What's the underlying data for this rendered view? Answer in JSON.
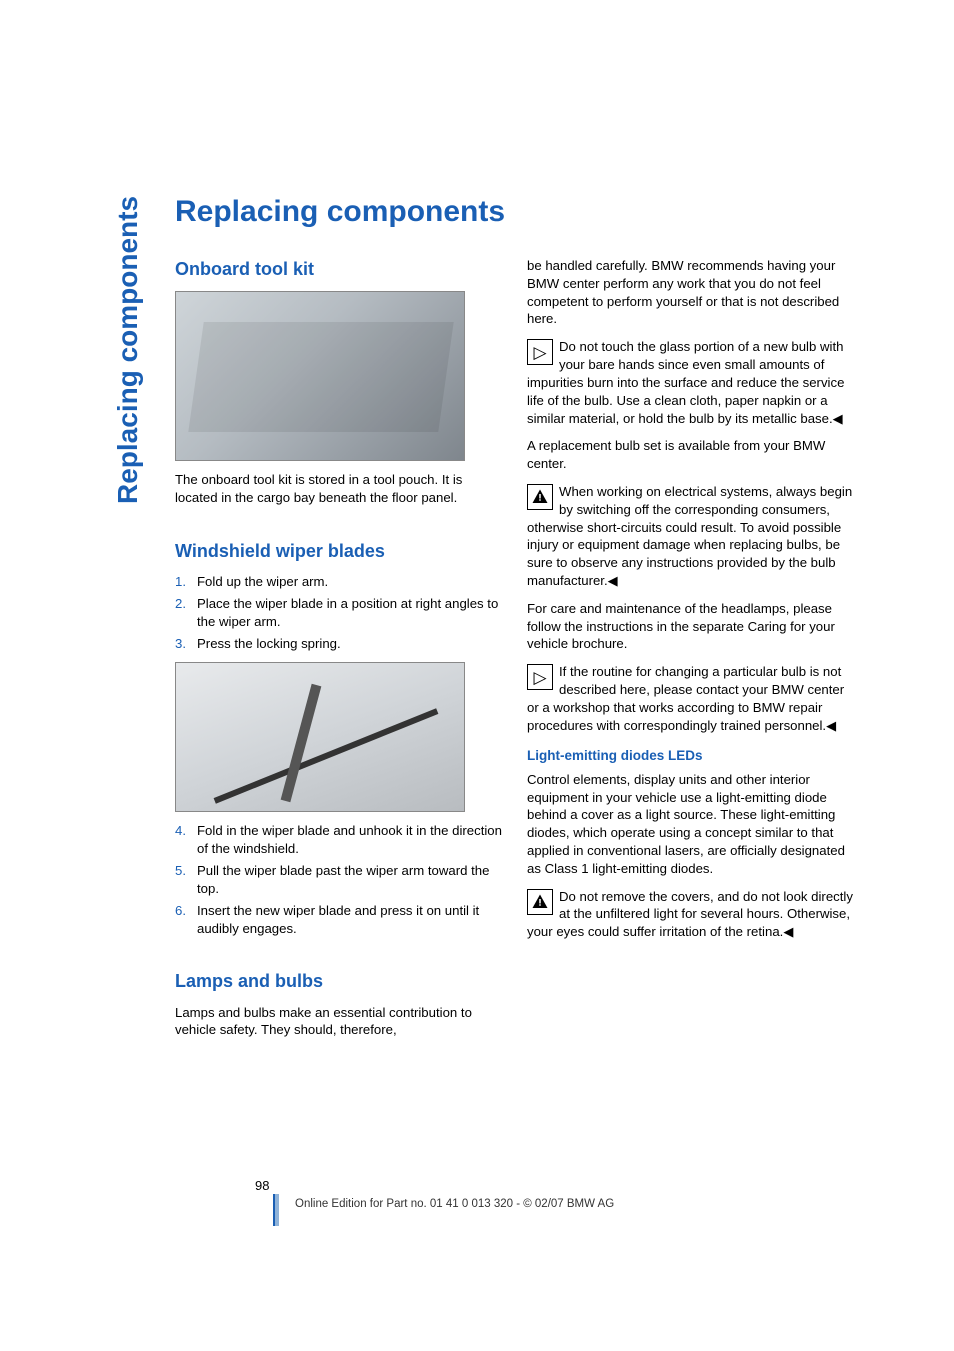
{
  "sideTab": "Replacing components",
  "chapterTitle": "Replacing components",
  "left": {
    "onboard": {
      "heading": "Onboard tool kit",
      "body": "The onboard tool kit is stored in a tool pouch. It is located in the cargo bay beneath the floor panel."
    },
    "wipers": {
      "heading": "Windshield wiper blades",
      "steps_a": [
        "Fold up the wiper arm.",
        "Place the wiper blade in a position at right angles to the wiper arm.",
        "Press the locking spring."
      ],
      "steps_b": [
        "Fold in the wiper blade and unhook it in the direction of the windshield.",
        "Pull the wiper blade past the wiper arm toward the top.",
        "Insert the new wiper blade and press it on until it audibly engages."
      ]
    },
    "lamps": {
      "heading": "Lamps and bulbs",
      "intro": "Lamps and bulbs make an essential contribution to vehicle safety. They should, therefore,"
    }
  },
  "right": {
    "cont": "be handled carefully. BMW recommends having your BMW center perform any work that you do not feel competent to perform yourself or that is not described here.",
    "note1": "Do not touch the glass portion of a new bulb with your bare hands since even small amounts of impurities burn into the surface and reduce the service life of the bulb. Use a clean cloth, paper napkin or a similar material, or hold the bulb by its metallic base.◀",
    "replacement": "A replacement bulb set is available from your BMW center.",
    "warn1": "When working on electrical systems, always begin by switching off the corresponding consumers, otherwise short-circuits could result. To avoid possible injury or equipment damage when replacing bulbs, be sure to observe any instructions provided by the bulb manufacturer.◀",
    "care": "For care and maintenance of the headlamps, please follow the instructions in the separate Caring for your vehicle brochure.",
    "note2": "If the routine for changing a particular bulb is not described here, please contact your BMW center or a workshop that works according to BMW repair procedures with correspondingly trained personnel.◀",
    "leds": {
      "heading": "Light-emitting diodes LEDs",
      "body": "Control elements, display units and other interior equipment in your vehicle use a light-emitting diode behind a cover as a light source. These light-emitting diodes, which operate using a concept similar to that applied in conventional lasers, are officially designated as Class 1 light-emitting diodes.",
      "warn": "Do not remove the covers, and do not look directly at the unfiltered light for several hours. Otherwise, your eyes could suffer irritation of the retina.◀"
    }
  },
  "footer": {
    "page": "98",
    "line": "Online Edition for Part no. 01 41 0 013 320 - © 02/07 BMW AG"
  },
  "colors": {
    "brand": "#1a5fb4",
    "text": "#000000",
    "bg": "#ffffff"
  }
}
